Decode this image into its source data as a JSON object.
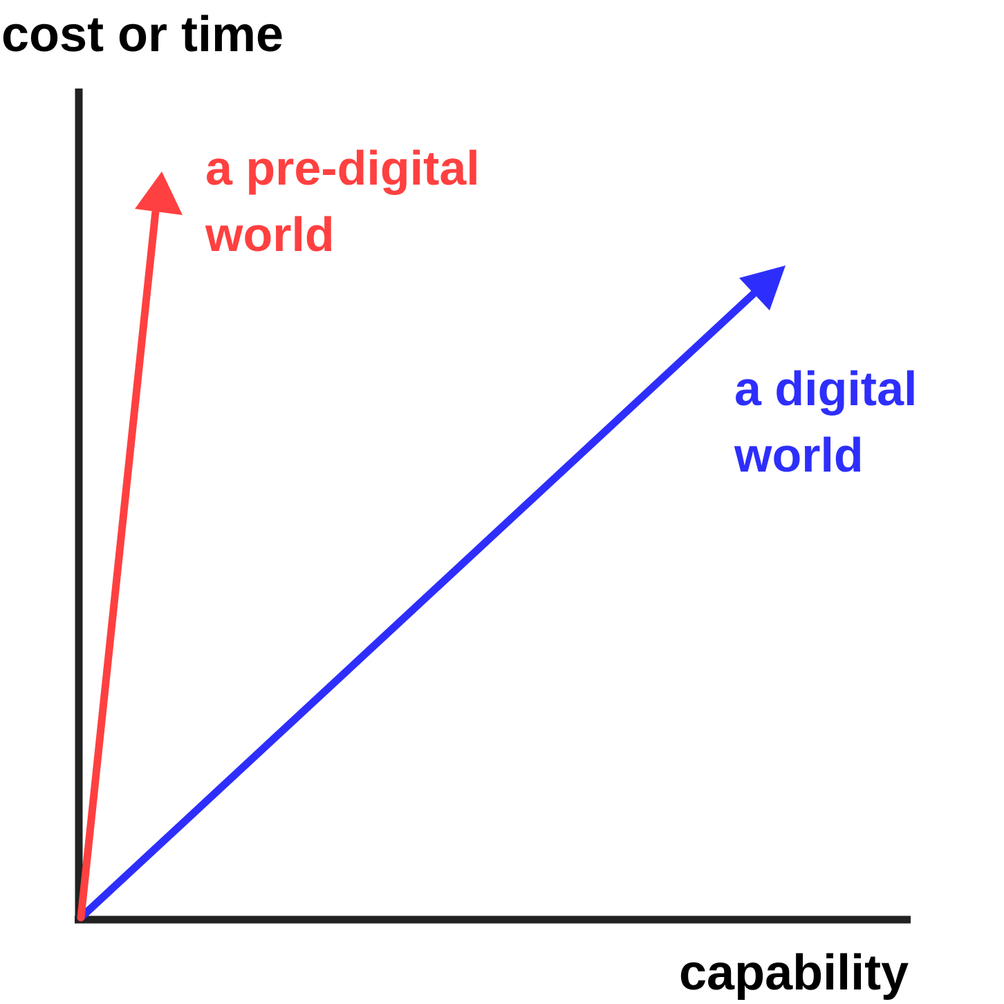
{
  "axes": {
    "y_label": "cost or time",
    "x_label": "capability"
  },
  "arrows": [
    {
      "id": "pre-digital",
      "label_lines": [
        "a pre-digital",
        "world"
      ],
      "color": "#ff4040"
    },
    {
      "id": "digital",
      "label_lines": [
        "a digital",
        "world"
      ],
      "color": "#2e2efc"
    }
  ],
  "colors": {
    "axis": "#222222",
    "background": "#ffffff"
  }
}
